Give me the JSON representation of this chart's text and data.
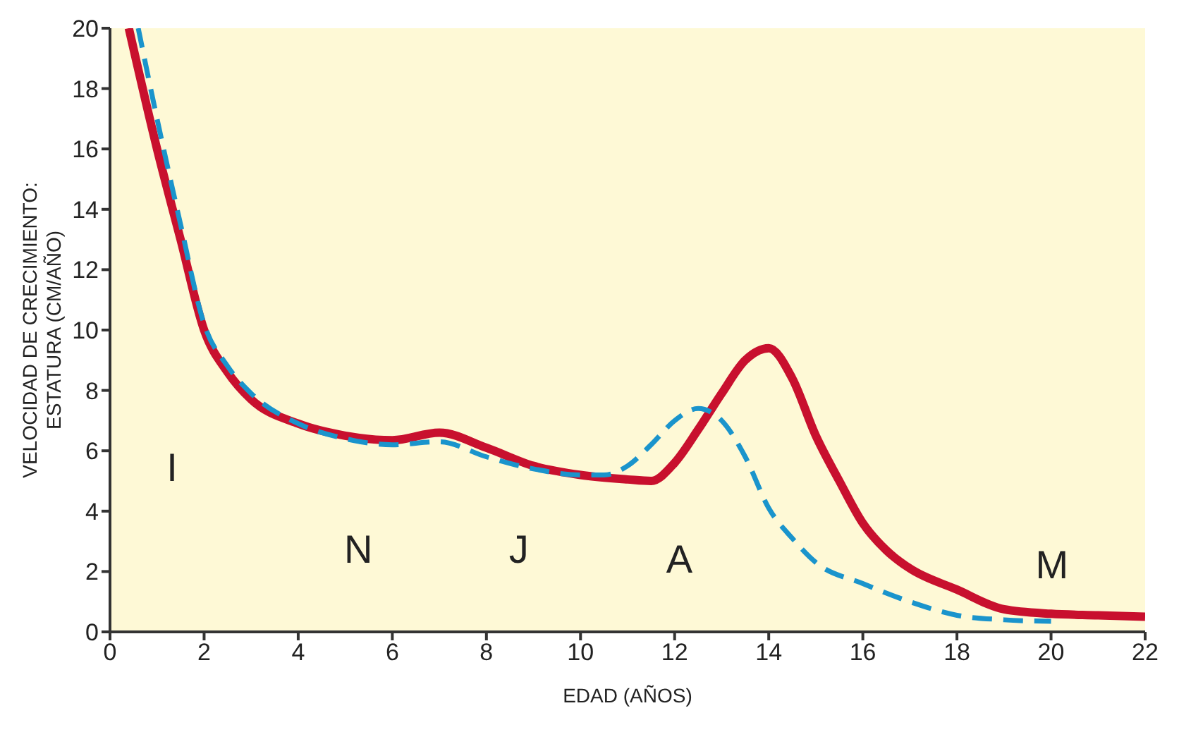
{
  "chart_data": {
    "type": "line",
    "xlabel": "EDAD (AÑOS)",
    "ylabel": "VELOCIDAD DE CRECIMIENTO:\nESTATURA (CM/AÑO)",
    "xlim": [
      0,
      22
    ],
    "xticks": [
      0,
      2,
      4,
      6,
      8,
      10,
      12,
      14,
      16,
      18,
      20,
      22
    ],
    "ylim": [
      0,
      20
    ],
    "yticks": [
      0,
      2,
      4,
      6,
      8,
      10,
      12,
      14,
      16,
      18,
      20
    ],
    "grid": false,
    "legend": false,
    "marker": "none",
    "series": [
      {
        "color": "#c8102e",
        "line_style": "solid",
        "x": [
          0.4,
          1,
          1.5,
          2,
          2.5,
          3,
          4,
          5,
          6,
          7,
          8,
          9,
          10,
          11,
          11.5,
          12,
          12.5,
          13,
          13.5,
          14,
          14.5,
          15,
          15.5,
          16,
          16.5,
          17,
          18,
          19,
          20,
          21,
          22
        ],
        "values": [
          20,
          16,
          13,
          10,
          8.6,
          7.7,
          6.9,
          6.5,
          6.35,
          6.6,
          6.1,
          5.5,
          5.2,
          5.05,
          5.0,
          5.6,
          6.7,
          7.9,
          9.0,
          9.4,
          8.4,
          6.5,
          5.0,
          3.6,
          2.7,
          2.1,
          1.4,
          0.75,
          0.6,
          0.55,
          0.5
        ]
      },
      {
        "color": "#1a94cc",
        "line_style": "dashed",
        "x": [
          0.6,
          1,
          1.5,
          2,
          2.5,
          3,
          4,
          5,
          6,
          7,
          8,
          9,
          10,
          10.5,
          11,
          11.5,
          12,
          12.5,
          13,
          13.5,
          14,
          14.5,
          15,
          16,
          17,
          18,
          19,
          20
        ],
        "values": [
          20,
          17,
          13.5,
          10.2,
          8.8,
          7.9,
          6.9,
          6.4,
          6.2,
          6.3,
          5.8,
          5.4,
          5.2,
          5.2,
          5.5,
          6.2,
          7.0,
          7.4,
          7.0,
          5.8,
          4.1,
          3.1,
          2.3,
          1.6,
          1.0,
          0.55,
          0.4,
          0.35
        ]
      }
    ],
    "annotations": [
      "I",
      "N",
      "J",
      "A",
      "M"
    ]
  }
}
